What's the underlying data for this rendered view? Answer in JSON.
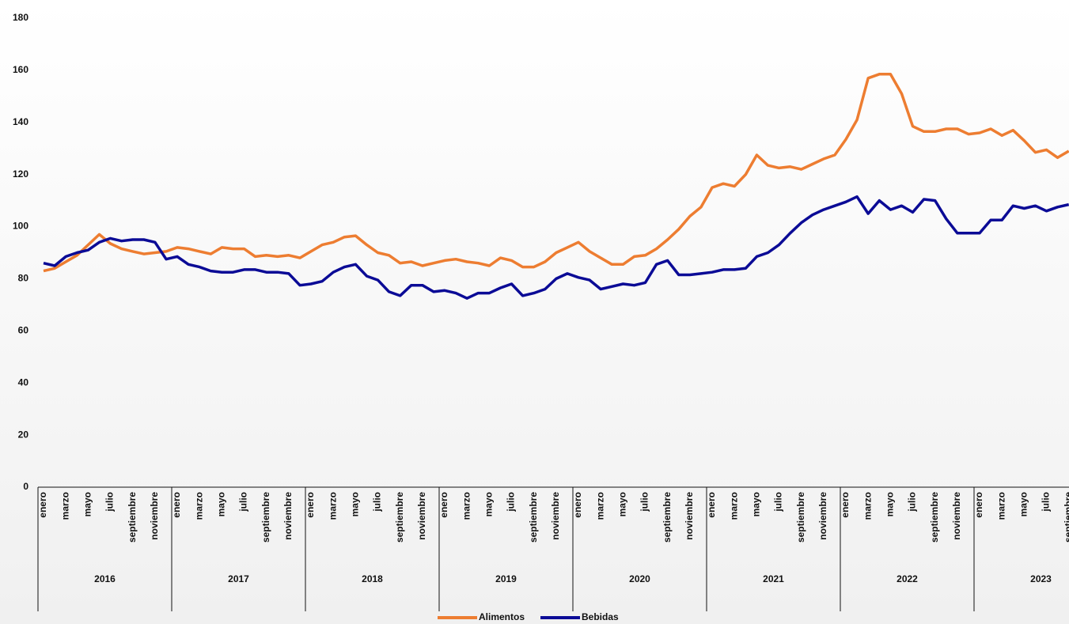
{
  "chart_data": {
    "type": "line",
    "categories": [
      "enero",
      null,
      "marzo",
      null,
      "mayo",
      null,
      "julio",
      null,
      "septiembre",
      null,
      "noviembre",
      null,
      "enero",
      null,
      "marzo",
      null,
      "mayo",
      null,
      "julio",
      null,
      "septiembre",
      null,
      "noviembre",
      null,
      "enero",
      null,
      "marzo",
      null,
      "mayo",
      null,
      "julio",
      null,
      "septiembre",
      null,
      "noviembre",
      null,
      "enero",
      null,
      "marzo",
      null,
      "mayo",
      null,
      "julio",
      null,
      "septiembre",
      null,
      "noviembre",
      null,
      "enero",
      null,
      "marzo",
      null,
      "mayo",
      null,
      "julio",
      null,
      "septiembre",
      null,
      "noviembre",
      null,
      "enero",
      null,
      "marzo",
      null,
      "mayo",
      null,
      "julio",
      null,
      "septiembre",
      null,
      "noviembre",
      null,
      "enero",
      null,
      "marzo",
      null,
      "mayo",
      null,
      "julio",
      null,
      "septiembre",
      null,
      "noviembre",
      null,
      "enero",
      null,
      "marzo",
      null,
      "mayo",
      null,
      "julio",
      null,
      "septiembre"
    ],
    "x_groups": [
      "2016",
      "2017",
      "2018",
      "2019",
      "2020",
      "2021",
      "2022",
      "2023"
    ],
    "series": [
      {
        "name": "Alimentos",
        "color": "#ed7d31",
        "values": [
          83,
          84,
          86.5,
          89,
          93,
          97,
          93.5,
          91.5,
          90.5,
          89.5,
          90,
          90.5,
          92,
          91.5,
          90.5,
          89.5,
          92,
          91.5,
          91.5,
          88.5,
          89,
          88.5,
          89,
          88,
          90.5,
          93,
          94,
          96,
          96.5,
          93,
          90,
          89,
          86,
          86.5,
          85,
          86,
          87,
          87.5,
          86.5,
          86,
          85,
          88,
          87,
          84.5,
          84.5,
          86.5,
          90,
          92,
          94,
          90.5,
          88,
          85.5,
          85.5,
          88.5,
          89,
          91.5,
          95,
          99,
          104,
          107.5,
          115,
          116.5,
          115.5,
          120,
          127.5,
          123.5,
          122.5,
          123,
          122,
          124,
          126,
          127.5,
          133.5,
          141,
          157,
          158.5,
          158.5,
          151,
          138.5,
          136.5,
          136.5,
          137.5,
          137.5,
          135.5,
          136,
          137.5,
          135,
          137,
          133,
          128.5,
          129.5,
          126.5,
          129
        ]
      },
      {
        "name": "Bebidas",
        "color": "#0b0b96",
        "values": [
          86,
          85,
          88.5,
          90,
          91,
          94,
          95.5,
          94.5,
          95,
          95,
          94,
          87.5,
          88.5,
          85.5,
          84.5,
          83,
          82.5,
          82.5,
          83.5,
          83.5,
          82.5,
          82.5,
          82,
          77.5,
          78,
          79,
          82.5,
          84.5,
          85.5,
          81,
          79.5,
          75,
          73.5,
          77.5,
          77.5,
          75,
          75.5,
          74.5,
          72.5,
          74.5,
          74.5,
          76.5,
          78,
          73.5,
          74.5,
          76,
          80,
          82,
          80.5,
          79.5,
          76,
          77,
          78,
          77.5,
          78.5,
          85.5,
          87,
          81.5,
          81.5,
          82,
          82.5,
          83.5,
          83.5,
          84,
          88.5,
          90,
          93,
          97.5,
          101.5,
          104.5,
          106.5,
          108,
          109.5,
          111.5,
          105,
          110,
          106.5,
          108,
          105.5,
          110.5,
          110,
          103,
          97.5,
          97.5,
          97.5,
          102.5,
          102.5,
          108,
          107,
          108,
          106,
          107.5,
          108.5
        ]
      }
    ],
    "ylim": [
      0,
      180
    ],
    "yticks": [
      0,
      20,
      40,
      60,
      80,
      100,
      120,
      140,
      160,
      180
    ],
    "grid": false
  }
}
